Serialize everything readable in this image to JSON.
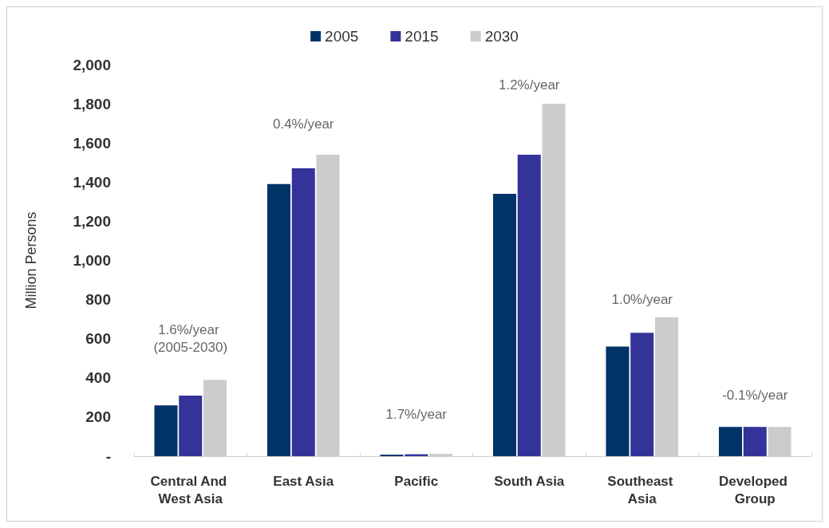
{
  "chart_data": {
    "type": "bar",
    "categories": [
      "Central And West Asia",
      "East Asia",
      "Pacific",
      "South Asia",
      "Southeast Asia",
      "Developed Group"
    ],
    "series": [
      {
        "name": "2005",
        "color": "#003366",
        "values": [
          260,
          1390,
          8,
          1340,
          560,
          150
        ]
      },
      {
        "name": "2015",
        "color": "#333399",
        "values": [
          310,
          1470,
          10,
          1540,
          630,
          150
        ]
      },
      {
        "name": "2030",
        "color": "#cccccc",
        "values": [
          390,
          1540,
          12,
          1800,
          710,
          150
        ]
      }
    ],
    "ylabel": "Million Persons",
    "ylim": [
      0,
      2000
    ],
    "yticks": [
      {
        "value": 0,
        "label": "-"
      },
      200,
      400,
      600,
      800,
      {
        "value": 1000,
        "label": "1,000"
      },
      {
        "value": 1200,
        "label": "1,200"
      },
      {
        "value": 1400,
        "label": "1,400"
      },
      {
        "value": 1600,
        "label": "1,600"
      },
      {
        "value": 1800,
        "label": "1,800"
      },
      {
        "value": 2000,
        "label": "2,000"
      }
    ],
    "annotations": [
      "1.6%/year (2005-2030)",
      "0.4%/year",
      "1.7%/year",
      "1.2%/year",
      "1.0%/year",
      "-0.1%/year"
    ],
    "legend": "top",
    "grid": false
  }
}
